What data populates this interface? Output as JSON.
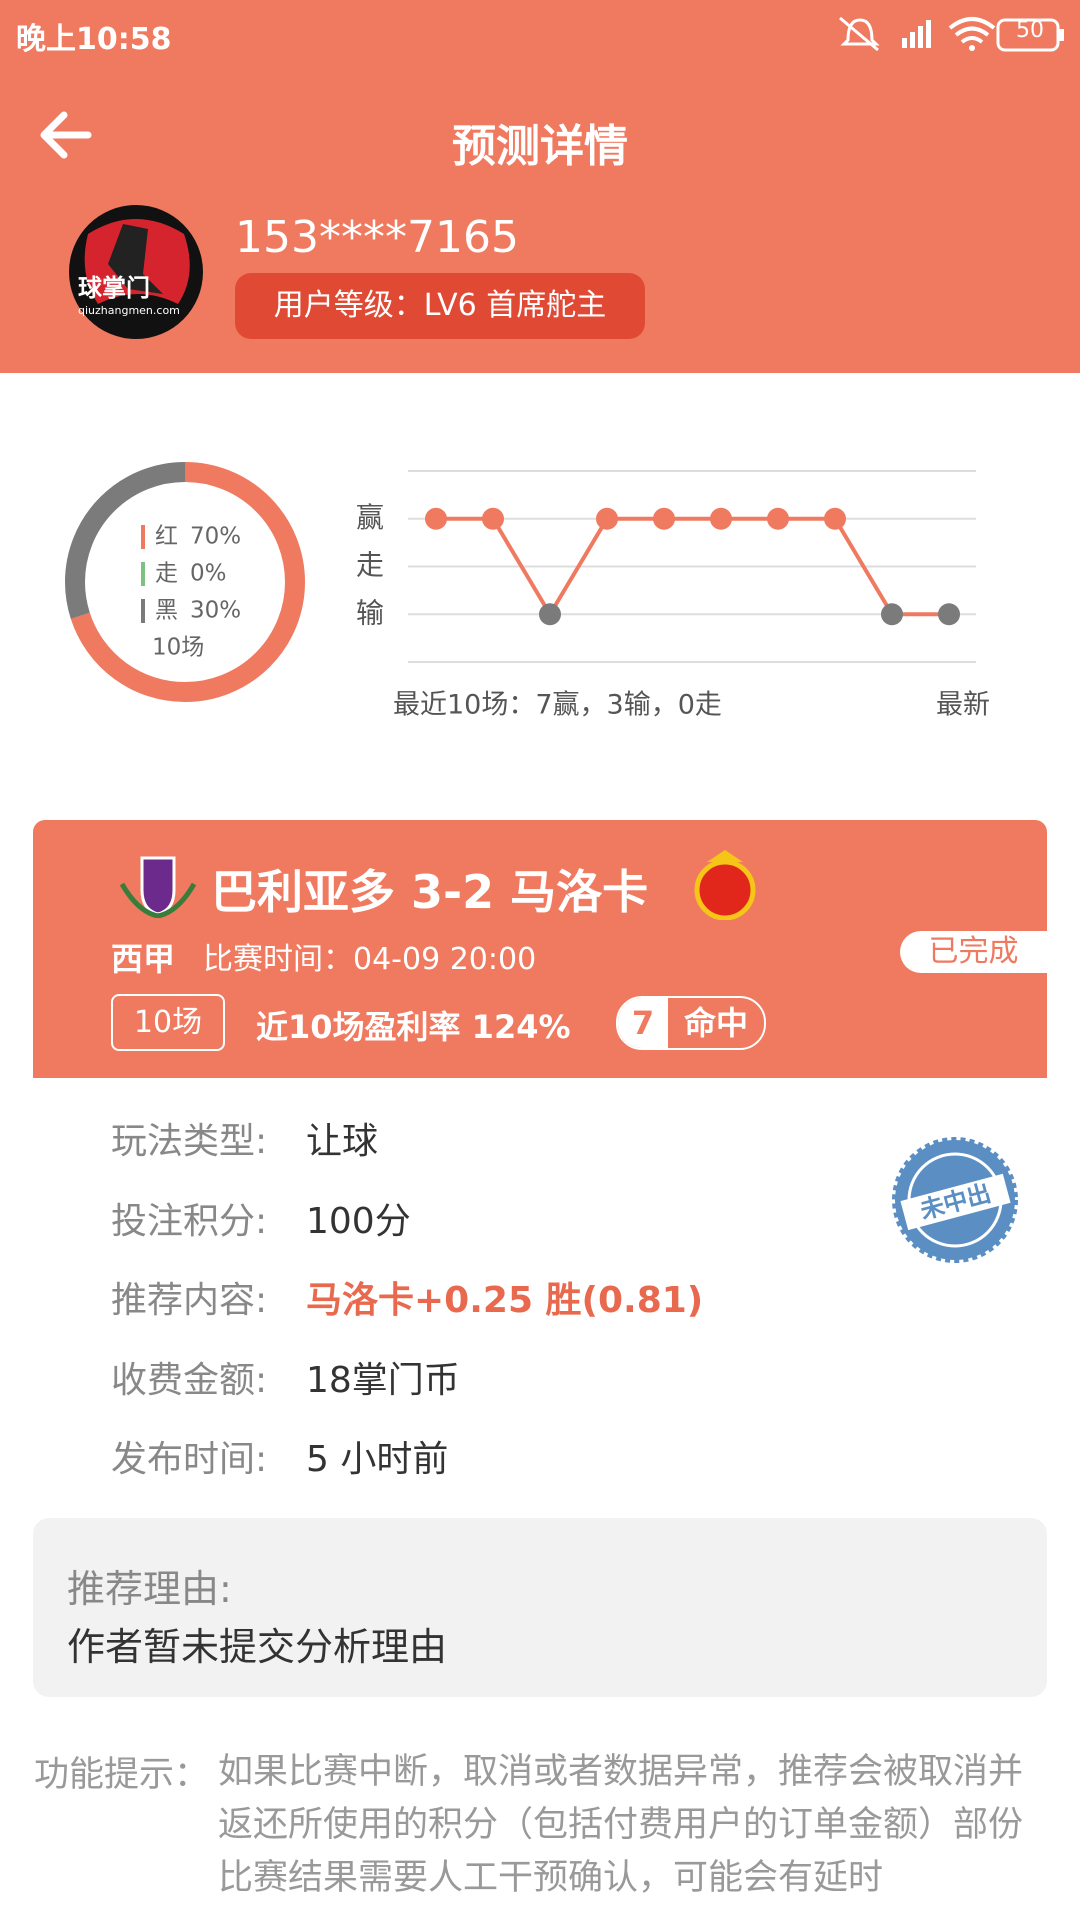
{
  "status_bar": {
    "time": "晚上10:58",
    "battery": "50"
  },
  "header": {
    "title": "预测详情"
  },
  "user": {
    "avatar_text": "球掌门",
    "avatar_url": "qiuzhangmen.com",
    "phone": "153****7165",
    "level": "用户等级：LV6 首席舵主"
  },
  "record": {
    "segments": [
      {
        "name": "红",
        "value": 70,
        "value_label": "70%",
        "color": "#ef7a60"
      },
      {
        "name": "走",
        "value": 0,
        "value_label": "0%",
        "color": "#7cc27f"
      },
      {
        "name": "黑",
        "value": 30,
        "value_label": "30%",
        "color": "#7b7b7b"
      }
    ],
    "total": "10场"
  },
  "trend": {
    "yticks": [
      {
        "value": 1,
        "label": "赢"
      },
      {
        "value": 0,
        "label": "走"
      },
      {
        "value": -1,
        "label": "输"
      }
    ],
    "ylim": [
      -2,
      2
    ],
    "values": [
      1,
      1,
      -1,
      1,
      1,
      1,
      1,
      1,
      -1,
      -1
    ],
    "line_color": "#ef7a60",
    "win_color": "#ef7a60",
    "loss_color": "#7b7b7b",
    "caption": "最近10场：7赢，3输，0走",
    "latest": "最新"
  },
  "match": {
    "title": "巴利亚多 3-2 马洛卡",
    "league": "西甲",
    "time": "比赛时间：04-09 20:00",
    "status": "已完成",
    "count": "10场",
    "profit": "近10场盈利率  124%",
    "hits": "7",
    "hit_label": "命中"
  },
  "details": [
    {
      "label": "玩法类型:",
      "value": "让球"
    },
    {
      "label": "投注积分:",
      "value": "100分"
    },
    {
      "label": "推荐内容:",
      "value": "马洛卡+0.25 胜(0.81)"
    },
    {
      "label": "收费金额:",
      "value": "18掌门币"
    },
    {
      "label": "发布时间:",
      "value": "5 小时前"
    }
  ],
  "stamp": "未中出",
  "reason": {
    "title": "推荐理由:",
    "text": "作者暂未提交分析理由"
  },
  "notice": {
    "label": "功能提示：",
    "text": "如果比赛中断，取消或者数据异常，推荐会被取消并返还所使用的积分（包括付费用户的订单金额）部份比赛结果需要人工干预确认，可能会有延时"
  }
}
